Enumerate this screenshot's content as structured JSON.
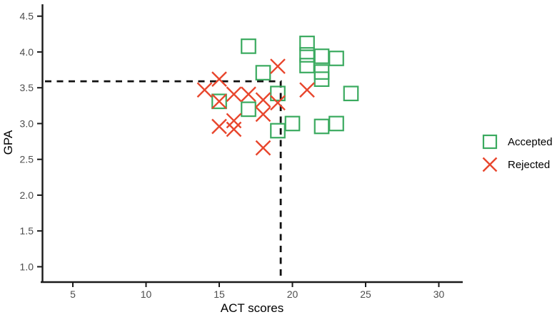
{
  "chart_data": {
    "type": "scatter",
    "title": "",
    "xlabel": "ACT scores",
    "ylabel": "GPA",
    "xlim": [
      3,
      31.7
    ],
    "ylim": [
      0.8,
      4.67
    ],
    "grid": false,
    "xticks": {
      "values": [
        5,
        10,
        15,
        20,
        25,
        30
      ],
      "labels": [
        "5",
        "10",
        "15",
        "20",
        "25",
        "30"
      ]
    },
    "yticks": {
      "values": [
        1.0,
        1.5,
        2.0,
        2.5,
        3.0,
        3.5,
        4.0,
        4.5
      ],
      "labels": [
        "1.0",
        "1.5",
        "2.0",
        "2.5",
        "3.0",
        "3.5",
        "4.0",
        "4.5"
      ]
    },
    "legend_position": "right",
    "series": [
      {
        "name": "Accepted",
        "marker": "square",
        "color": "#3aaa5f",
        "points": [
          [
            17,
            4.08
          ],
          [
            21,
            4.12
          ],
          [
            21,
            3.96
          ],
          [
            21,
            3.81
          ],
          [
            22,
            3.94
          ],
          [
            23,
            3.91
          ],
          [
            22,
            3.72
          ],
          [
            22,
            3.62
          ],
          [
            18,
            3.71
          ],
          [
            19,
            3.42
          ],
          [
            24,
            3.42
          ],
          [
            15,
            3.31
          ],
          [
            17,
            3.2
          ],
          [
            20,
            3.0
          ],
          [
            19,
            2.9
          ],
          [
            22,
            2.96
          ],
          [
            23,
            3.0
          ]
        ]
      },
      {
        "name": "Rejected",
        "marker": "x",
        "color": "#e8462d",
        "points": [
          [
            15,
            3.62
          ],
          [
            19,
            3.8
          ],
          [
            14,
            3.47
          ],
          [
            16,
            3.41
          ],
          [
            17,
            3.41
          ],
          [
            21,
            3.47
          ],
          [
            18,
            3.33
          ],
          [
            19,
            3.29
          ],
          [
            15,
            3.31
          ],
          [
            18,
            3.13
          ],
          [
            16,
            3.04
          ],
          [
            15,
            2.96
          ],
          [
            16,
            2.92
          ],
          [
            18,
            2.66
          ]
        ]
      }
    ],
    "threshold_lines": {
      "act": 19.2,
      "gpa": 3.59,
      "style": "dashed",
      "color": "#111111"
    }
  },
  "axis": {
    "line_color": "#1a1a1a",
    "tick_label_color": "#4d4d4d"
  },
  "legend": {
    "items": [
      {
        "label": "Accepted"
      },
      {
        "label": "Rejected"
      }
    ]
  }
}
